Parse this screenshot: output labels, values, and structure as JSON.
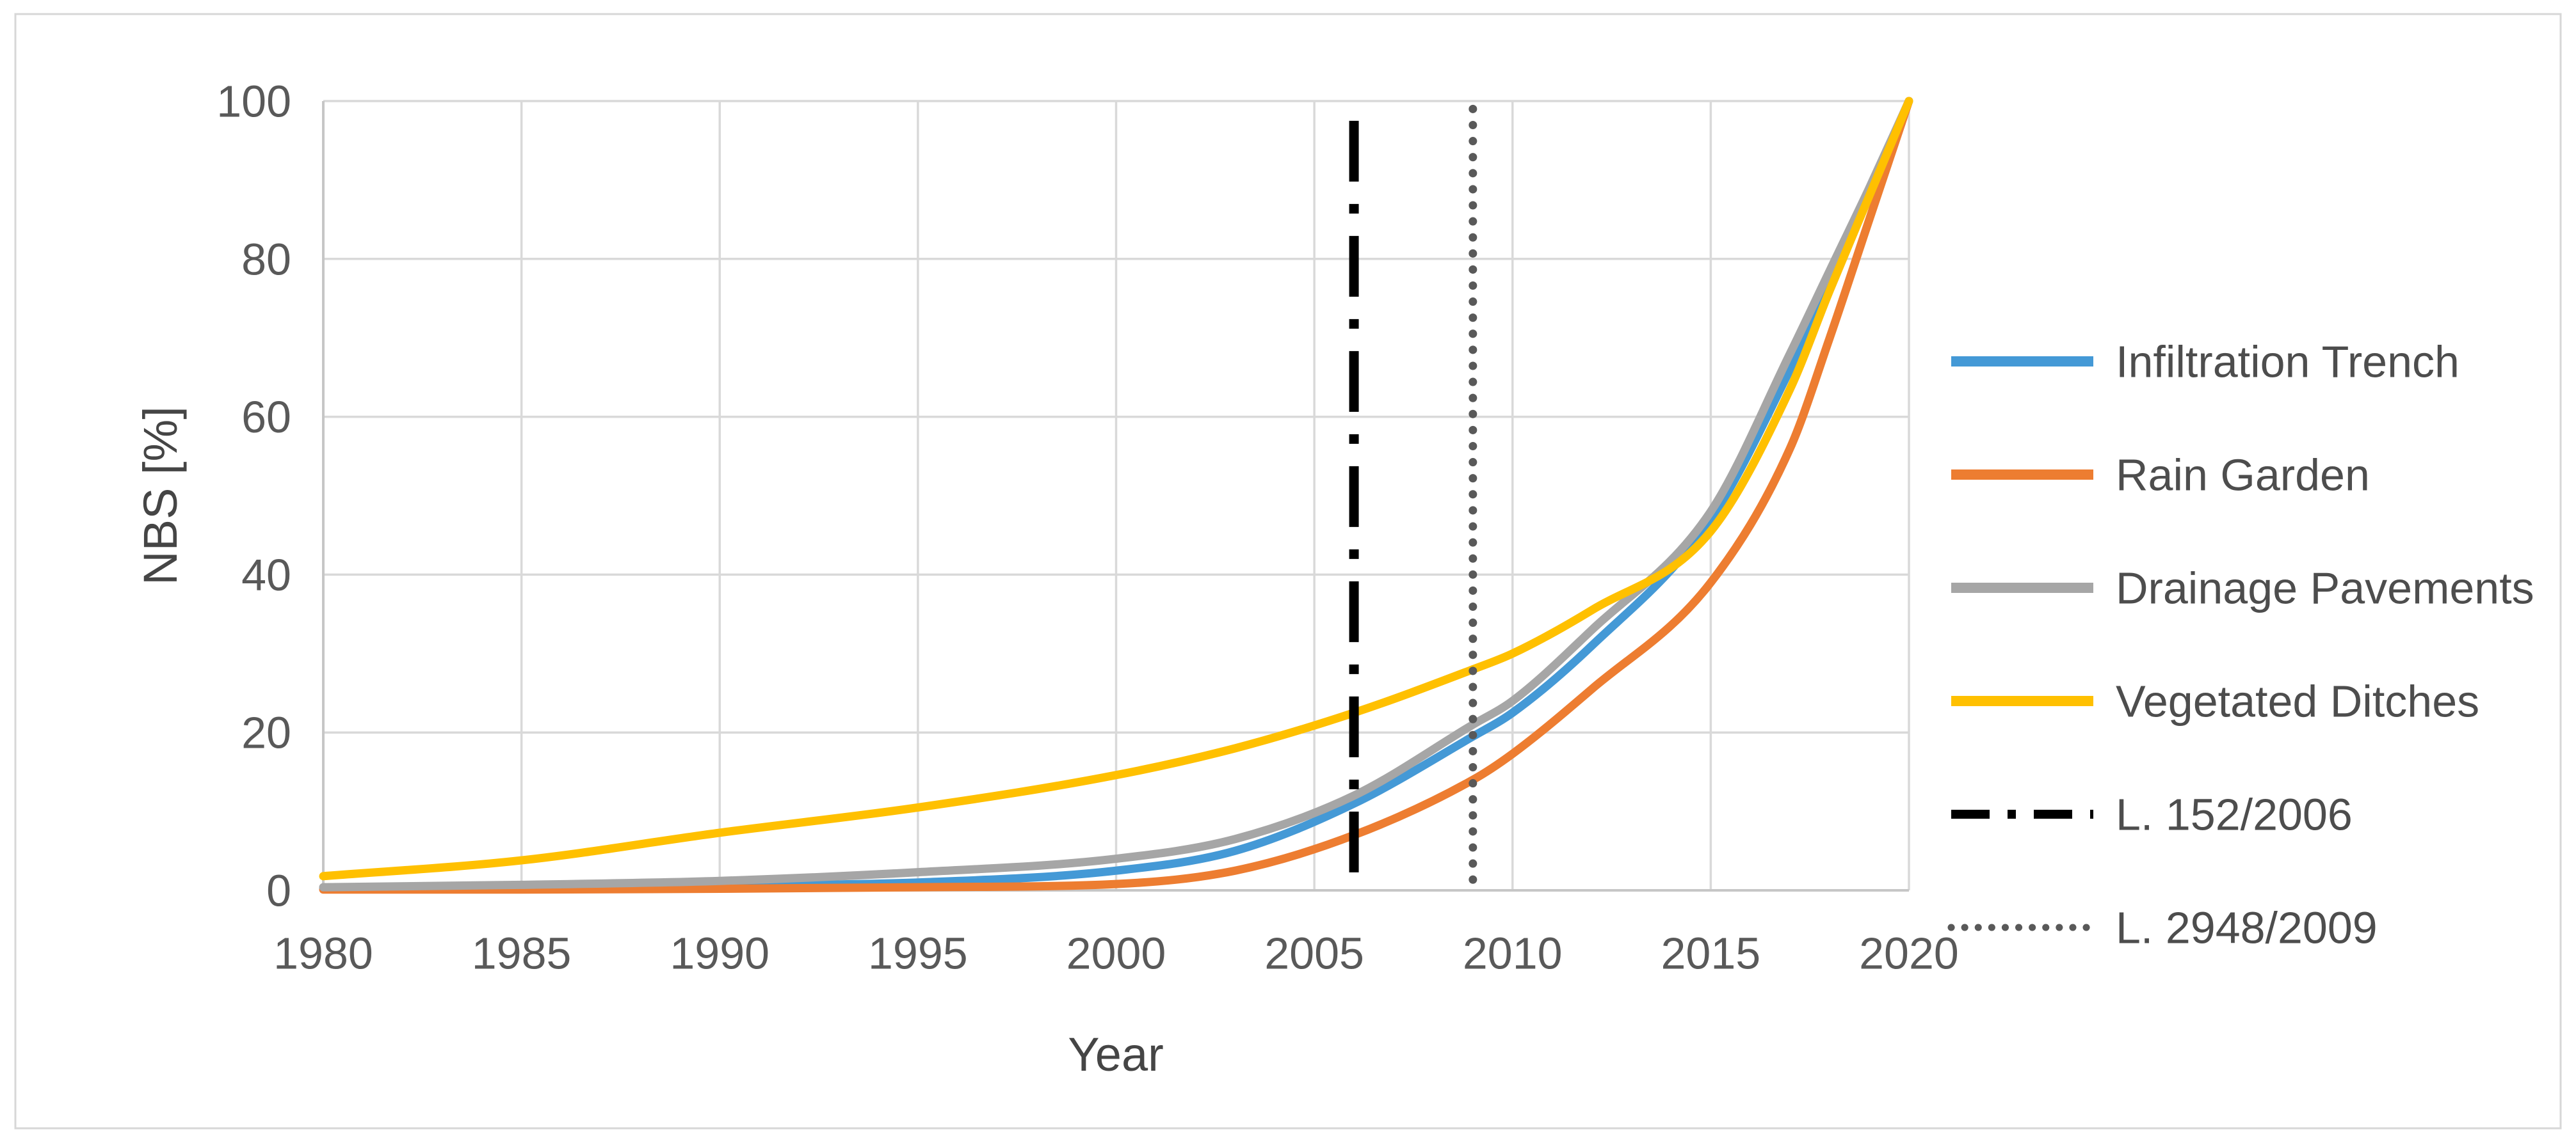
{
  "chart_data": {
    "type": "line",
    "title": "",
    "xlabel": "Year",
    "ylabel": "NBS [%]",
    "x_range": [
      1980,
      2020
    ],
    "y_range": [
      0,
      100
    ],
    "x_ticks": [
      1980,
      1985,
      1990,
      1995,
      2000,
      2005,
      2010,
      2015,
      2020
    ],
    "y_ticks": [
      0,
      20,
      40,
      60,
      80,
      100
    ],
    "grid": true,
    "legend_position": "right",
    "x": [
      1980,
      1985,
      1990,
      1995,
      2000,
      2003,
      2006,
      2009,
      2010,
      2012,
      2015,
      2017,
      2018,
      2019,
      2020
    ],
    "series": [
      {
        "name": "Infiltration Trench",
        "color": "#4499D6",
        "values": [
          0.2,
          0.4,
          0.6,
          1.0,
          2.5,
          5.0,
          11.0,
          19.5,
          22.5,
          31.0,
          47.0,
          66.0,
          77.0,
          88.5,
          100
        ]
      },
      {
        "name": "Rain Garden",
        "color": "#ED7D31",
        "values": [
          0.1,
          0.1,
          0.2,
          0.4,
          0.8,
          2.5,
          7.0,
          14.0,
          17.3,
          25.5,
          39.0,
          56.0,
          70.0,
          85.0,
          100
        ]
      },
      {
        "name": "Drainage Pavements",
        "color": "#A6A6A6",
        "values": [
          0.4,
          0.7,
          1.2,
          2.3,
          4.0,
          6.5,
          12.0,
          21.0,
          24.0,
          33.0,
          48.0,
          68.0,
          78.5,
          89.0,
          100
        ]
      },
      {
        "name": "Vegetated Ditches",
        "color": "#FFC000",
        "values": [
          1.8,
          3.8,
          7.3,
          10.5,
          14.6,
          18.0,
          22.5,
          28.0,
          30.0,
          35.5,
          45.5,
          63.5,
          76.0,
          88.0,
          100
        ]
      }
    ],
    "reference_lines": [
      {
        "name": "L. 152/2006",
        "year": 2006,
        "style": "dash-dot",
        "color": "#000000",
        "top_value": 97.5
      },
      {
        "name": "L. 2948/2009",
        "year": 2009,
        "style": "dotted",
        "color": "#595959",
        "top_value": 99.0
      }
    ],
    "colors": {
      "gridline": "#D9D9D9",
      "axis_line": "#C6C6C6",
      "tick_text": "#595959",
      "frame_border": "#D7D7D7"
    }
  }
}
